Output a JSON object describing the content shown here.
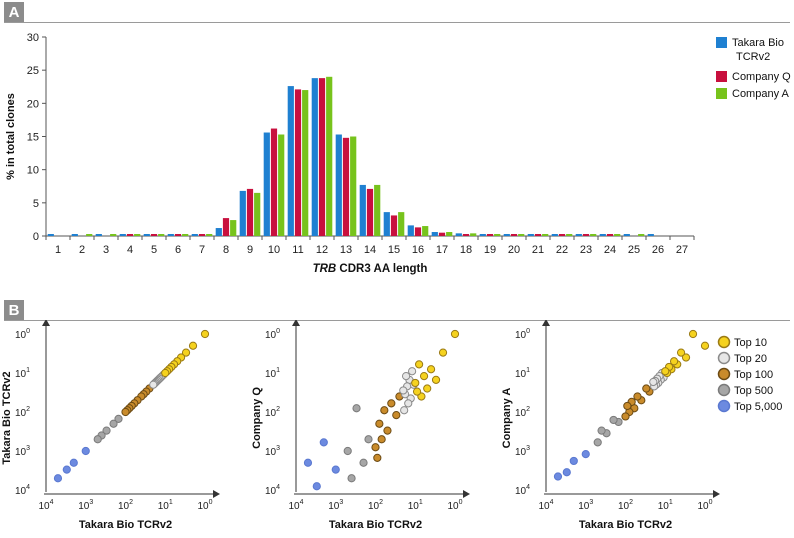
{
  "panels": {
    "a": "A",
    "b": "B"
  },
  "colors": {
    "takara": "#1f80d1",
    "companyQ": "#c8103e",
    "companyA": "#77c31c"
  },
  "chart_data": [
    {
      "type": "bar",
      "title": "",
      "xlabel_italic": "TRB",
      "xlabel_rest": " CDR3 AA length",
      "ylabel": "% in total clones",
      "ylim": [
        0,
        30
      ],
      "yticks": [
        "0",
        "5",
        "10",
        "15",
        "20",
        "25",
        "30"
      ],
      "categories": [
        "1",
        "2",
        "3",
        "4",
        "5",
        "6",
        "7",
        "8",
        "9",
        "10",
        "11",
        "12",
        "13",
        "14",
        "15",
        "16",
        "17",
        "18",
        "19",
        "20",
        "21",
        "22",
        "23",
        "24",
        "25",
        "26",
        "27"
      ],
      "legend_position": "top-right",
      "series": [
        {
          "name": "Takara Bio\nTCRv2",
          "color": "#1f80d1",
          "values": [
            0.3,
            0.3,
            0.3,
            0.3,
            0.3,
            0.3,
            0.3,
            1.2,
            6.8,
            15.6,
            22.6,
            23.8,
            15.3,
            7.7,
            3.6,
            1.6,
            0.6,
            0.4,
            0.3,
            0.3,
            0.3,
            0.3,
            0.3,
            0.3,
            0.3,
            0.3,
            0
          ]
        },
        {
          "name": "Company Q",
          "color": "#c8103e",
          "values": [
            0,
            0,
            0,
            0.3,
            0.3,
            0.3,
            0.3,
            2.7,
            7.1,
            16.2,
            22.1,
            23.8,
            14.8,
            7.1,
            3.1,
            1.3,
            0.5,
            0.3,
            0.3,
            0.3,
            0.3,
            0.3,
            0.3,
            0.3,
            0,
            0,
            0
          ]
        },
        {
          "name": "Company A",
          "color": "#77c31c",
          "values": [
            0,
            0.3,
            0.3,
            0.3,
            0.3,
            0.3,
            0.3,
            2.4,
            6.5,
            15.3,
            22.0,
            24.0,
            15.0,
            7.7,
            3.6,
            1.5,
            0.6,
            0.4,
            0.3,
            0.3,
            0.3,
            0.3,
            0.3,
            0.3,
            0.3,
            0,
            0
          ]
        }
      ]
    },
    {
      "type": "scatter",
      "xlabel": "Takara Bio TCRv2",
      "ylabel": "Takara Bio TCRv2",
      "scale": "log",
      "ticks": [
        "10^4",
        "10^3",
        "10^2",
        "10^1",
        "10^0"
      ],
      "ticks_base": [
        "10",
        "10",
        "10",
        "10",
        "10"
      ],
      "ticks_exp": [
        "4",
        "3",
        "2",
        "1",
        "0"
      ],
      "tiers": [
        {
          "name": "Top 10",
          "color": "#f5d21e",
          "edge": "#9a7a14",
          "points": [
            [
              1,
              1
            ],
            [
              2,
              2
            ],
            [
              3,
              3
            ],
            [
              4,
              4
            ],
            [
              5,
              5
            ],
            [
              6,
              6
            ],
            [
              7,
              7
            ],
            [
              8,
              8
            ],
            [
              9,
              9
            ],
            [
              10,
              10
            ]
          ]
        },
        {
          "name": "Top 20",
          "color": "#e6e6e6",
          "edge": "#8a8a8a",
          "points": [
            [
              11,
              11
            ],
            [
              12,
              12
            ],
            [
              13,
              13
            ],
            [
              14,
              14
            ],
            [
              15,
              15
            ],
            [
              16,
              16
            ],
            [
              17,
              17
            ],
            [
              18,
              18
            ],
            [
              19,
              19
            ],
            [
              20,
              20
            ]
          ]
        },
        {
          "name": "Top 100",
          "color": "#c98b2b",
          "edge": "#6b4a14",
          "points": [
            [
              25,
              25
            ],
            [
              30,
              30
            ],
            [
              35,
              35
            ],
            [
              40,
              40
            ],
            [
              50,
              50
            ],
            [
              60,
              60
            ],
            [
              70,
              70
            ],
            [
              80,
              80
            ],
            [
              90,
              90
            ],
            [
              100,
              100
            ]
          ]
        },
        {
          "name": "Top 500",
          "color": "#a6a6a6",
          "edge": "#7a7a7a",
          "points": [
            [
              150,
              150
            ],
            [
              200,
              200
            ],
            [
              300,
              300
            ],
            [
              400,
              400
            ],
            [
              500,
              500
            ]
          ]
        },
        {
          "name": "Top 5,000",
          "color": "#6c8ae0",
          "edge": "#5a78d0",
          "points": [
            [
              1000,
              1000
            ],
            [
              2000,
              2000
            ],
            [
              3000,
              3000
            ],
            [
              5000,
              5000
            ]
          ]
        }
      ]
    },
    {
      "type": "scatter",
      "xlabel": "Takara Bio TCRv2",
      "ylabel": "Company Q",
      "scale": "log",
      "ticks_base": [
        "10",
        "10",
        "10",
        "10",
        "10"
      ],
      "ticks_exp": [
        "4",
        "3",
        "2",
        "1",
        "0"
      ],
      "tiers": [
        {
          "name": "Top 10",
          "color": "#f5d21e",
          "edge": "#9a7a14",
          "points": [
            [
              1,
              1
            ],
            [
              2,
              3
            ],
            [
              3,
              15
            ],
            [
              4,
              8
            ],
            [
              5,
              25
            ],
            [
              6,
              12
            ],
            [
              7,
              40
            ],
            [
              8,
              6
            ],
            [
              9,
              30
            ],
            [
              10,
              18
            ]
          ]
        },
        {
          "name": "Top 20",
          "color": "#e6e6e6",
          "edge": "#8a8a8a",
          "points": [
            [
              11,
              20
            ],
            [
              12,
              9
            ],
            [
              13,
              45
            ],
            [
              14,
              15
            ],
            [
              15,
              60
            ],
            [
              16,
              22
            ],
            [
              17,
              12
            ],
            [
              18,
              35
            ],
            [
              19,
              90
            ],
            [
              20,
              28
            ]
          ]
        },
        {
          "name": "Top 100",
          "color": "#c98b2b",
          "edge": "#6b4a14",
          "points": [
            [
              25,
              40
            ],
            [
              30,
              120
            ],
            [
              40,
              60
            ],
            [
              50,
              300
            ],
            [
              60,
              90
            ],
            [
              70,
              500
            ],
            [
              80,
              200
            ],
            [
              90,
              1500
            ],
            [
              100,
              800
            ]
          ]
        },
        {
          "name": "Top 500",
          "color": "#a6a6a6",
          "edge": "#7a7a7a",
          "points": [
            [
              150,
              500
            ],
            [
              200,
              2000
            ],
            [
              300,
              80
            ],
            [
              400,
              5000
            ],
            [
              500,
              1000
            ]
          ]
        },
        {
          "name": "Top 5,000",
          "color": "#6c8ae0",
          "edge": "#5a78d0",
          "points": [
            [
              1000,
              3000
            ],
            [
              2000,
              600
            ],
            [
              3000,
              8000
            ],
            [
              5000,
              2000
            ]
          ]
        }
      ]
    },
    {
      "type": "scatter",
      "xlabel": "Takara Bio TCRv2",
      "ylabel": "Company A",
      "scale": "log",
      "ticks_base": [
        "10",
        "10",
        "10",
        "10",
        "10"
      ],
      "ticks_exp": [
        "4",
        "3",
        "2",
        "1",
        "0"
      ],
      "legend_position": "right",
      "legend": [
        "Top 10",
        "Top 20",
        "Top 100",
        "Top 500",
        "Top 5,000"
      ],
      "tiers": [
        {
          "name": "Top 10",
          "color": "#f5d21e",
          "edge": "#9a7a14",
          "points": [
            [
              1,
              2
            ],
            [
              2,
              1
            ],
            [
              3,
              4
            ],
            [
              4,
              3
            ],
            [
              5,
              6
            ],
            [
              6,
              5
            ],
            [
              7,
              8
            ],
            [
              8,
              7
            ],
            [
              9,
              10
            ],
            [
              10,
              9
            ]
          ]
        },
        {
          "name": "Top 20",
          "color": "#e6e6e6",
          "edge": "#8a8a8a",
          "points": [
            [
              11,
              13
            ],
            [
              12,
              10
            ],
            [
              13,
              15
            ],
            [
              14,
              12
            ],
            [
              15,
              18
            ],
            [
              16,
              14
            ],
            [
              17,
              20
            ],
            [
              18,
              16
            ],
            [
              19,
              22
            ],
            [
              20,
              17
            ]
          ]
        },
        {
          "name": "Top 100",
          "color": "#c98b2b",
          "edge": "#6b4a14",
          "points": [
            [
              25,
              30
            ],
            [
              30,
              25
            ],
            [
              40,
              50
            ],
            [
              50,
              40
            ],
            [
              60,
              80
            ],
            [
              70,
              55
            ],
            [
              80,
              100
            ],
            [
              90,
              70
            ],
            [
              100,
              130
            ]
          ]
        },
        {
          "name": "Top 500",
          "color": "#a6a6a6",
          "edge": "#7a7a7a",
          "points": [
            [
              150,
              180
            ],
            [
              200,
              160
            ],
            [
              300,
              350
            ],
            [
              400,
              300
            ],
            [
              500,
              600
            ]
          ]
        },
        {
          "name": "Top 5,000",
          "color": "#6c8ae0",
          "edge": "#5a78d0",
          "points": [
            [
              1000,
              1200
            ],
            [
              2000,
              1800
            ],
            [
              3000,
              3500
            ],
            [
              5000,
              4500
            ]
          ]
        }
      ]
    }
  ]
}
